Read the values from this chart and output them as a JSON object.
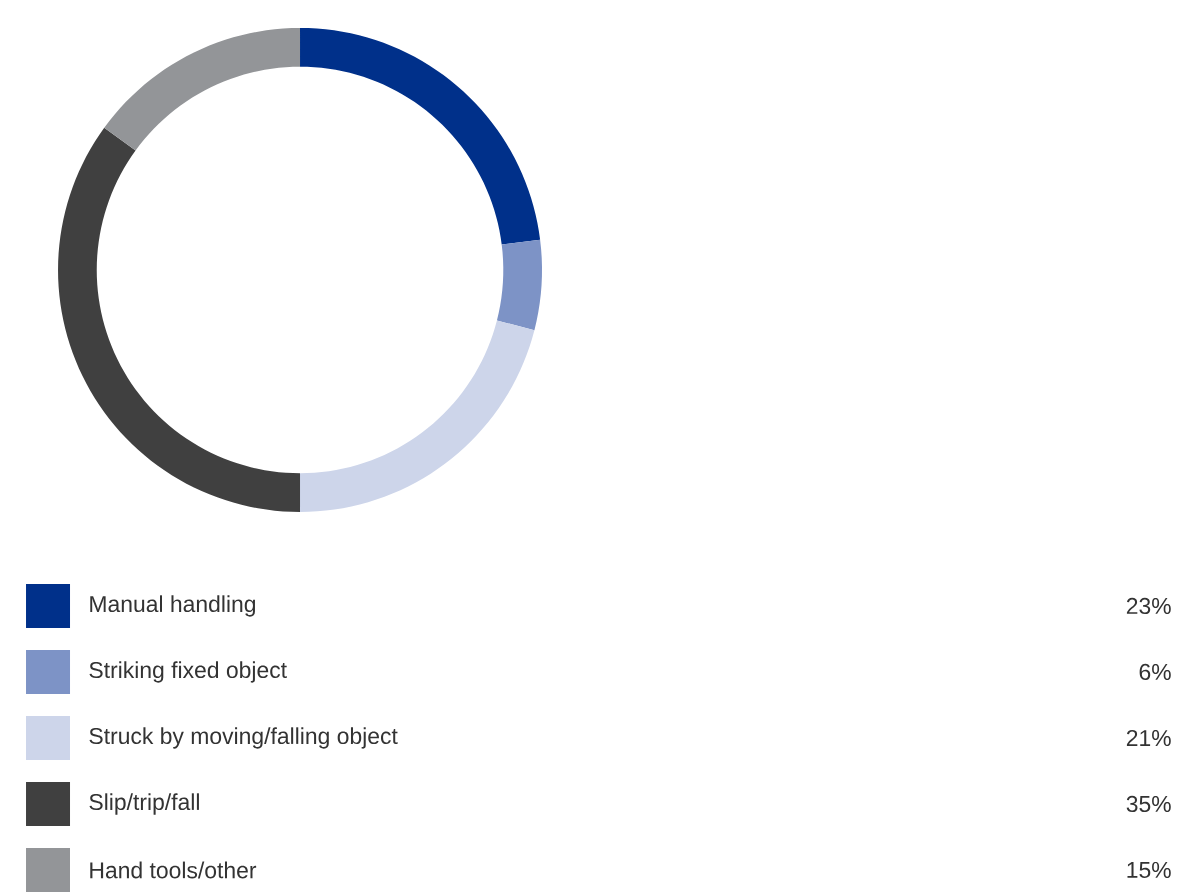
{
  "chart_data": {
    "type": "donut",
    "categories": [
      "Manual handling",
      "Striking fixed object",
      "Struck by moving/falling object",
      "Slip/trip/fall",
      "Hand tools/other"
    ],
    "values": [
      23,
      6,
      21,
      35,
      15
    ],
    "value_labels": [
      "23%",
      "6%",
      "21%",
      "35%",
      "15%"
    ],
    "colors": [
      "#00308a",
      "#7d93c6",
      "#cdd5ea",
      "#404040",
      "#939598"
    ],
    "legend": "bottom"
  }
}
